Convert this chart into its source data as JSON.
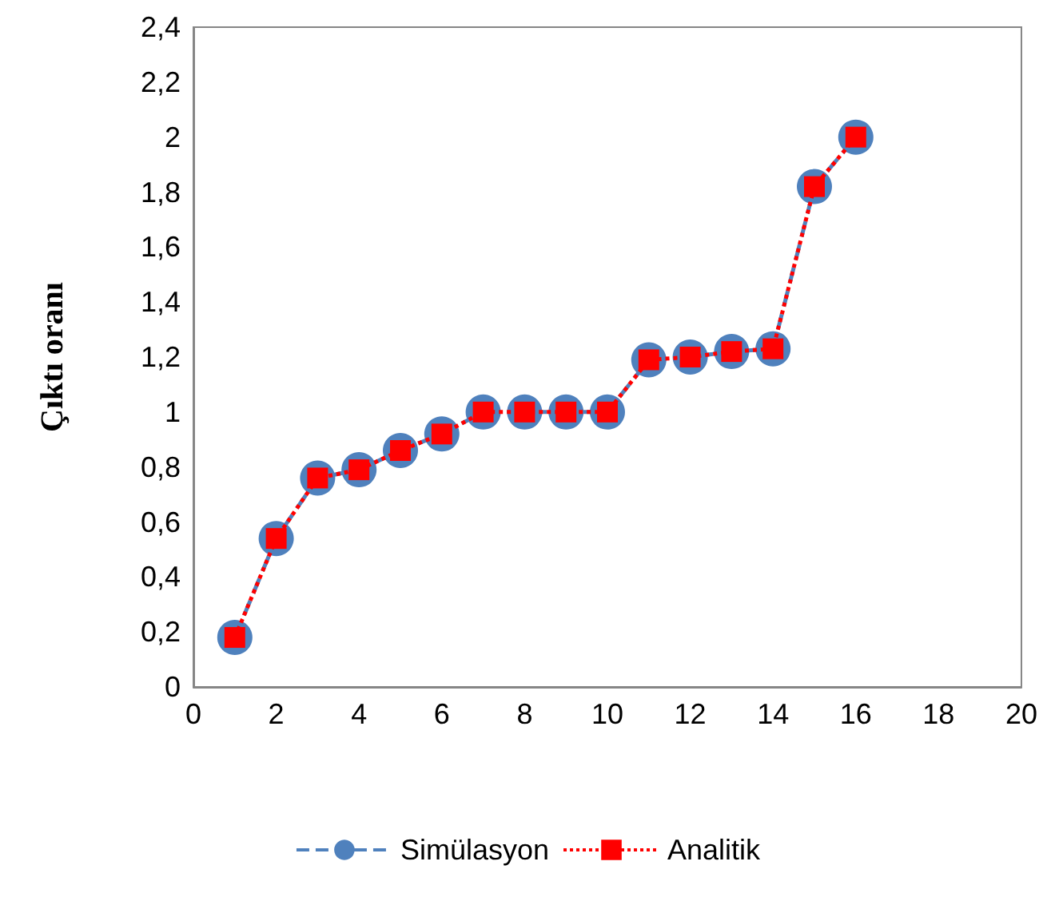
{
  "chart_data": {
    "type": "line",
    "ylabel": "Çıktı oranı",
    "x": [
      1,
      2,
      3,
      4,
      5,
      6,
      7,
      8,
      9,
      10,
      11,
      12,
      13,
      14,
      15,
      16
    ],
    "series": [
      {
        "name": "Simülasyon",
        "color": "#4f81bd",
        "marker": "circle",
        "line_style": "dashed",
        "values": [
          0.18,
          0.54,
          0.76,
          0.79,
          0.86,
          0.92,
          1,
          1,
          1,
          1,
          1.19,
          1.2,
          1.22,
          1.23,
          1.82,
          2
        ]
      },
      {
        "name": "Analitik",
        "color": "#ff0000",
        "marker": "square",
        "line_style": "dotted",
        "values": [
          0.18,
          0.54,
          0.76,
          0.79,
          0.86,
          0.92,
          1,
          1,
          1,
          1,
          1.19,
          1.2,
          1.22,
          1.23,
          1.82,
          2
        ]
      }
    ],
    "xlim": [
      0,
      20
    ],
    "xticks": [
      0,
      2,
      4,
      6,
      8,
      10,
      12,
      14,
      16,
      18,
      20
    ],
    "ylim": [
      0,
      2.4
    ],
    "yticks": [
      0,
      {
        "value": 0.2,
        "label": "0,2"
      },
      {
        "value": 0.4,
        "label": "0,4"
      },
      {
        "value": 0.6,
        "label": "0,6"
      },
      {
        "value": 0.8,
        "label": "0,8"
      },
      1,
      {
        "value": 1.2,
        "label": "1,2"
      },
      {
        "value": 1.4,
        "label": "1,4"
      },
      {
        "value": 1.6,
        "label": "1,6"
      },
      {
        "value": 1.8,
        "label": "1,8"
      },
      2,
      {
        "value": 2.2,
        "label": "2,2"
      },
      {
        "value": 2.4,
        "label": "2,4"
      }
    ],
    "grid": false,
    "legend": "bottom"
  }
}
